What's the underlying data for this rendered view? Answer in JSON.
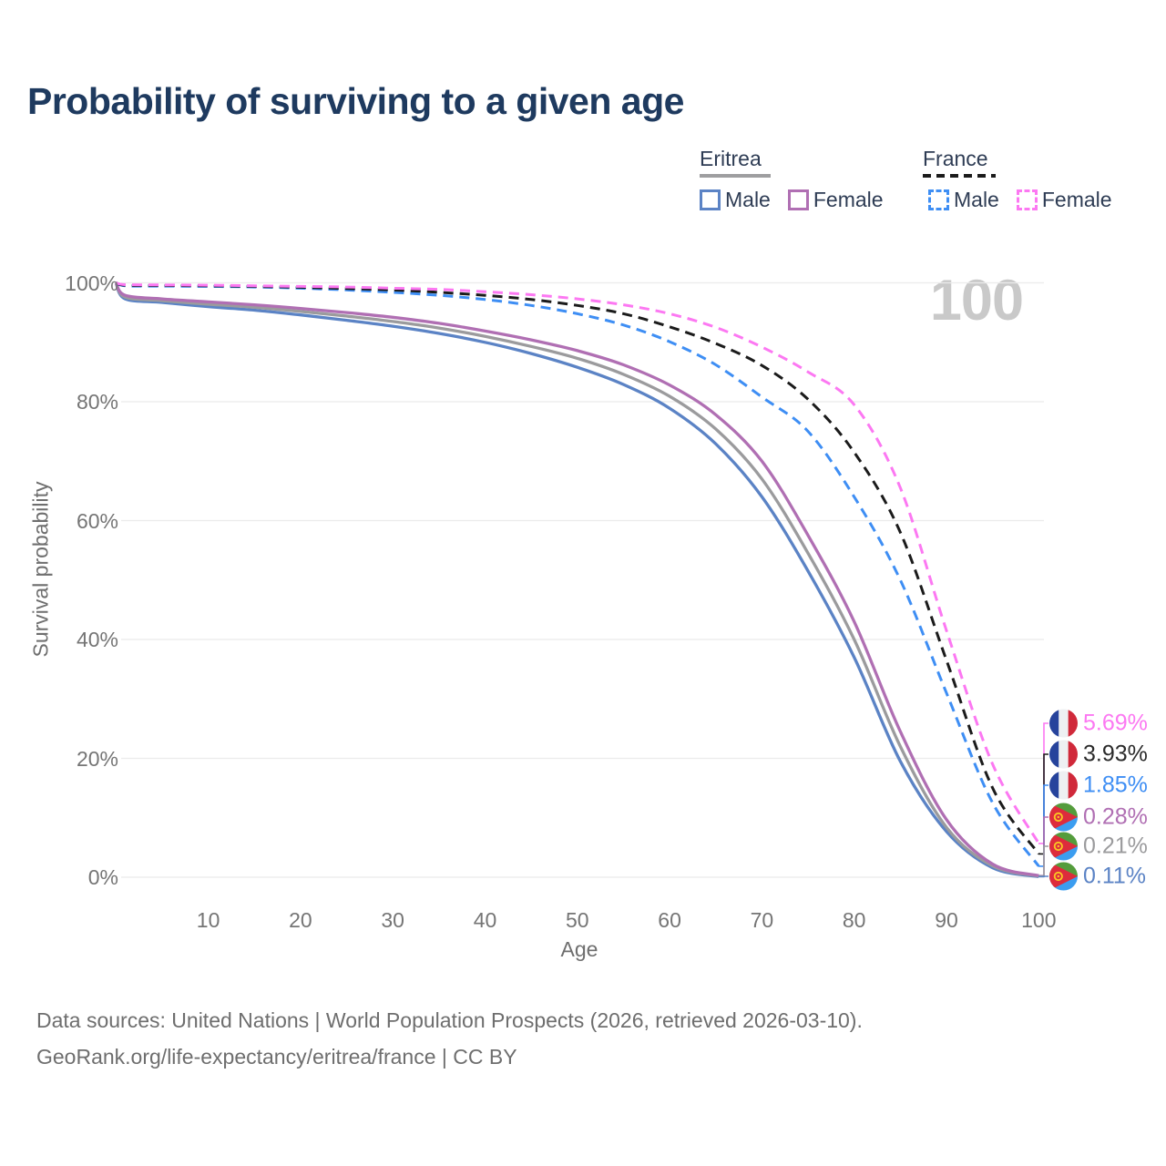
{
  "page": {
    "title": "Probability of surviving to a given age",
    "watermark_age": "100"
  },
  "legend": {
    "groups": [
      {
        "label": "Eritrea",
        "line_style": "solid",
        "underline_color": "#9e9ea0",
        "items": [
          {
            "label": "Male",
            "color": "#5b83c5",
            "style": "solid"
          },
          {
            "label": "Female",
            "color": "#b06fb3",
            "style": "solid"
          }
        ]
      },
      {
        "label": "France",
        "line_style": "dashed",
        "underline_color": "#1b1b1b",
        "items": [
          {
            "label": "Male",
            "color": "#3e8ef4",
            "style": "dashed"
          },
          {
            "label": "Female",
            "color": "#fc78f2",
            "style": "dashed"
          }
        ]
      }
    ]
  },
  "flags": {
    "france": {
      "blue": "#26439c",
      "white": "#eef0f2",
      "red": "#d0293a"
    },
    "eritrea": {
      "green": "#549c3c",
      "blue": "#3b9df0",
      "red": "#dd2c3c",
      "gold": "#f9c623"
    }
  },
  "chart_data": {
    "type": "line",
    "title": "Probability of surviving to a given age",
    "xlabel": "Age",
    "ylabel": "Survival probability",
    "xlim": [
      0,
      100
    ],
    "ylim": [
      0,
      100
    ],
    "grid": "horizontal-only",
    "grid_color": "#ebebeb",
    "x_ticks": [
      10,
      20,
      30,
      40,
      50,
      60,
      70,
      80,
      90,
      100
    ],
    "y_ticks": [
      {
        "value": 100,
        "label": "100%"
      },
      {
        "value": 80,
        "label": "80%"
      },
      {
        "value": 60,
        "label": "60%"
      },
      {
        "value": 40,
        "label": "40%"
      },
      {
        "value": 20,
        "label": "20%"
      },
      {
        "value": 0,
        "label": "0%"
      }
    ],
    "x": [
      0,
      1,
      5,
      10,
      15,
      20,
      25,
      30,
      35,
      40,
      45,
      50,
      55,
      60,
      65,
      70,
      75,
      80,
      85,
      90,
      95,
      100
    ],
    "series": [
      {
        "name": "Eritrea Male",
        "country": "Eritrea",
        "sex": "Male",
        "style": "solid",
        "color": "#5b83c5",
        "flag": "eritrea",
        "end_label": "0.11%",
        "end_value": 0.11,
        "values": [
          100,
          97.3,
          96.7,
          96.0,
          95.4,
          94.6,
          93.7,
          92.7,
          91.5,
          90.0,
          88.1,
          85.8,
          82.9,
          78.9,
          72.9,
          64.0,
          51.5,
          37.0,
          19.5,
          7.7,
          1.6,
          0.11
        ]
      },
      {
        "name": "Eritrea",
        "country": "Eritrea",
        "sex": "Both sexes",
        "style": "solid",
        "color": "#9b9b9d",
        "flag": "eritrea",
        "end_label": "0.21%",
        "end_value": 0.21,
        "values": [
          100,
          97.6,
          97.0,
          96.4,
          95.9,
          95.2,
          94.4,
          93.5,
          92.4,
          91.0,
          89.3,
          87.3,
          84.6,
          80.9,
          75.4,
          67.0,
          54.5,
          40.0,
          22.0,
          8.4,
          1.9,
          0.21
        ]
      },
      {
        "name": "Eritrea Female",
        "country": "Eritrea",
        "sex": "Female",
        "style": "solid",
        "color": "#b06fb3",
        "flag": "eritrea",
        "end_label": "0.28%",
        "end_value": 0.28,
        "values": [
          100,
          97.9,
          97.3,
          96.8,
          96.3,
          95.7,
          95.0,
          94.2,
          93.2,
          91.9,
          90.4,
          88.6,
          86.2,
          82.8,
          77.8,
          70.0,
          57.5,
          43.0,
          24.5,
          9.7,
          2.2,
          0.28
        ]
      },
      {
        "name": "France Male",
        "country": "France",
        "sex": "Male",
        "style": "dashed",
        "color": "#3e8ef4",
        "flag": "france",
        "end_label": "1.85%",
        "end_value": 1.85,
        "values": [
          100,
          99.5,
          99.45,
          99.4,
          99.3,
          99.1,
          98.8,
          98.4,
          97.9,
          97.2,
          96.2,
          94.8,
          92.9,
          90.1,
          86.2,
          80.8,
          75.0,
          64.0,
          50.0,
          31.0,
          12.5,
          1.85
        ]
      },
      {
        "name": "France",
        "country": "France",
        "sex": "Both sexes",
        "style": "dashed",
        "color": "#1b1b1b",
        "flag": "france",
        "end_label": "3.93%",
        "end_value": 3.93,
        "values": [
          100,
          99.6,
          99.55,
          99.5,
          99.4,
          99.25,
          99.05,
          98.8,
          98.4,
          97.9,
          97.2,
          96.2,
          94.8,
          92.6,
          89.8,
          86.1,
          80.4,
          71.5,
          58.0,
          36.5,
          15.0,
          3.93
        ]
      },
      {
        "name": "France Female",
        "country": "France",
        "sex": "Female",
        "style": "dashed",
        "color": "#fc78f2",
        "flag": "france",
        "end_label": "5.69%",
        "end_value": 5.69,
        "values": [
          100,
          99.7,
          99.65,
          99.6,
          99.5,
          99.4,
          99.3,
          99.1,
          98.9,
          98.5,
          98.0,
          97.3,
          96.3,
          94.8,
          92.5,
          89.2,
          85.0,
          79.5,
          65.5,
          41.5,
          19.0,
          5.69
        ]
      }
    ]
  },
  "footer": {
    "line1": "Data sources: United Nations | World Population Prospects (2026, retrieved 2026-03-10).",
    "line2": "GeoRank.org/life-expectancy/eritrea/france | CC BY"
  }
}
